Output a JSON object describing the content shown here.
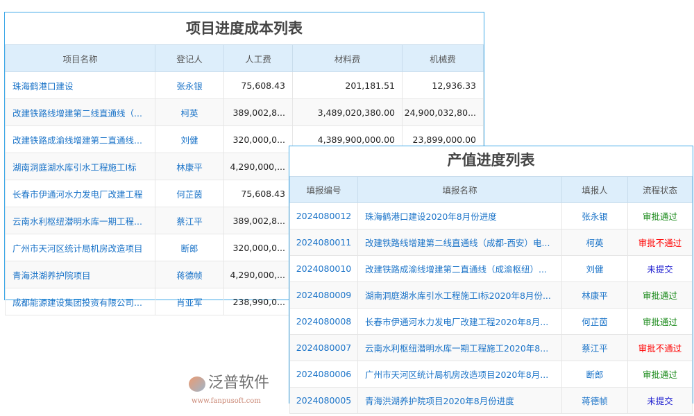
{
  "cost_table": {
    "title": "项目进度成本列表",
    "headers": [
      "项目名称",
      "登记人",
      "人工费",
      "材料费",
      "机械费"
    ],
    "rows": [
      [
        "珠海鹤港口建设",
        "张永银",
        "75,608.43",
        "201,181.51",
        "12,936.33"
      ],
      [
        "改建铁路线增建第二线直通线（...",
        "柯英",
        "389,002,8...",
        "3,489,020,380.00",
        "24,900,032,80..."
      ],
      [
        "改建铁路成渝线增建第二直通线...",
        "刘健",
        "320,000,0...",
        "4,389,900,000.00",
        "23,899,000.00"
      ],
      [
        "湖南洞庭湖水库引水工程施工I标",
        "林康平",
        "4,290,000,...",
        "",
        ""
      ],
      [
        "长春市伊通河水力发电厂改建工程",
        "何芷茵",
        "75,608.43",
        "",
        ""
      ],
      [
        "云南水利枢纽潜明水库一期工程...",
        "蔡江平",
        "389,002,8...",
        "",
        ""
      ],
      [
        "广州市天河区统计局机房改造项目",
        "断郎",
        "320,000,0...",
        "",
        ""
      ],
      [
        "青海洪湖养护院项目",
        "蒋德帧",
        "4,290,000,...",
        "",
        ""
      ],
      [
        "成都能源建设集团投资有限公司...",
        "肖亚军",
        "238,990,0...",
        "",
        ""
      ]
    ]
  },
  "output_table": {
    "title": "产值进度列表",
    "headers": [
      "填报编号",
      "填报名称",
      "填报人",
      "流程状态"
    ],
    "rows": [
      [
        "2024080012",
        "珠海鹤港口建设2020年8月份进度",
        "张永银",
        "审批通过",
        "ok"
      ],
      [
        "2024080011",
        "改建铁路线增建第二线直通线（成都-西安）电...",
        "柯英",
        "审批不通过",
        "no"
      ],
      [
        "2024080010",
        "改建铁路成渝线增建第二直通线（成渝枢纽）...",
        "刘健",
        "未提交",
        "ns"
      ],
      [
        "2024080009",
        "湖南洞庭湖水库引水工程施工I标2020年8月份...",
        "林康平",
        "审批通过",
        "ok"
      ],
      [
        "2024080008",
        "长春市伊通河水力发电厂改建工程2020年8月...",
        "何芷茵",
        "审批通过",
        "ok"
      ],
      [
        "2024080007",
        "云南水利枢纽潜明水库一期工程施工2020年8...",
        "蔡江平",
        "审批不通过",
        "no"
      ],
      [
        "2024080006",
        "广州市天河区统计局机房改造项目2020年8月...",
        "断郎",
        "审批通过",
        "ok"
      ],
      [
        "2024080005",
        "青海洪湖养护院项目2020年8月份进度",
        "蒋德帧",
        "未提交",
        "ns"
      ]
    ]
  },
  "watermark": {
    "name": "泛普软件",
    "url": "www.fanpusoft.com"
  },
  "colors": {
    "border": "#3fa9e8",
    "header_bg": "#ddeefb",
    "link": "#1a73c8",
    "approved": "#1a8a1a",
    "rejected": "#ff0000",
    "not_submitted": "#2020d0"
  }
}
